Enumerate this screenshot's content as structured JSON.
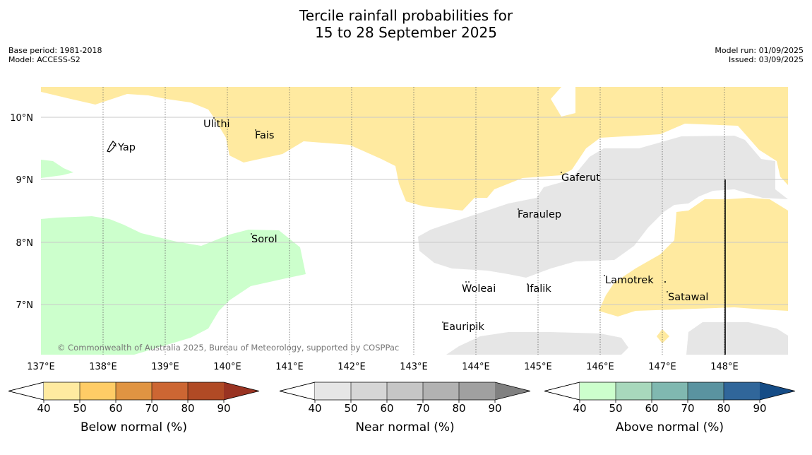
{
  "header": {
    "title_line1": "Tercile rainfall probabilities for",
    "title_line2": "15 to 28 September 2025",
    "base_period": "Base period: 1981-2018",
    "model": "Model: ACCESS-S2",
    "model_run": "Model run: 01/09/2025",
    "issued": "Issued: 03/09/2025"
  },
  "map": {
    "copyright": "© Commonwealth of Australia 2025, Bureau of Meteorology, supported by COSPPac",
    "lat_labels": [
      "10°N",
      "9°N",
      "8°N",
      "7°N"
    ],
    "lon_labels": [
      "137°E",
      "138°E",
      "139°E",
      "140°E",
      "141°E",
      "142°E",
      "143°E",
      "144°E",
      "145°E",
      "146°E",
      "147°E",
      "148°E"
    ],
    "places": [
      "Ulithi",
      "Fais",
      "Yap",
      "Gaferut",
      "Faraulep",
      "Sorol",
      "Lamotrek",
      "Woleai",
      "Ifalik",
      "Satawal",
      "Eauripik"
    ],
    "colors": {
      "below_normal": "#ffeaa0",
      "near_normal": "#e6e6e6",
      "above_normal": "#ccffcc"
    }
  },
  "legends": [
    {
      "label": "Below normal (%)",
      "ticks": [
        "40",
        "50",
        "60",
        "70",
        "80",
        "90"
      ],
      "colors": [
        "#ffeaa0",
        "#ffcc66",
        "#e09442",
        "#cc6633",
        "#b04a25",
        "#993322"
      ]
    },
    {
      "label": "Near normal (%)",
      "ticks": [
        "40",
        "50",
        "60",
        "70",
        "80",
        "90"
      ],
      "colors": [
        "#e6e6e6",
        "#d6d6d6",
        "#c6c6c6",
        "#b2b2b2",
        "#a0a0a0",
        "#808080"
      ]
    },
    {
      "label": "Above normal (%)",
      "ticks": [
        "40",
        "50",
        "60",
        "70",
        "80",
        "90"
      ],
      "colors": [
        "#ccffcc",
        "#a8d8bc",
        "#80b8b0",
        "#5a93a0",
        "#30669a",
        "#154c86"
      ]
    }
  ]
}
